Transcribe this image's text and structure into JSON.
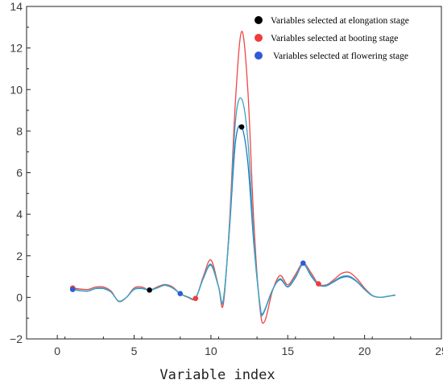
{
  "chart_data": {
    "type": "line",
    "title": "",
    "xlabel": "Variable index",
    "ylabel": "",
    "xlim": [
      -2,
      25
    ],
    "ylim": [
      -2,
      14
    ],
    "x_ticks": [
      0,
      5,
      10,
      15,
      20,
      25
    ],
    "y_ticks": [
      -2,
      0,
      2,
      4,
      6,
      8,
      10,
      12,
      14
    ],
    "grid": false,
    "legend_position": "top-right",
    "series": [
      {
        "color": "#f04545",
        "points": [
          [
            1,
            0.45
          ],
          [
            1.5,
            0.4
          ],
          [
            2,
            0.38
          ],
          [
            2.5,
            0.5
          ],
          [
            3,
            0.5
          ],
          [
            3.5,
            0.3
          ],
          [
            4,
            -0.2
          ],
          [
            4.5,
            0.0
          ],
          [
            5,
            0.45
          ],
          [
            5.5,
            0.5
          ],
          [
            6,
            0.35
          ],
          [
            6.5,
            0.5
          ],
          [
            7,
            0.62
          ],
          [
            7.5,
            0.5
          ],
          [
            8,
            0.18
          ],
          [
            8.5,
            0.0
          ],
          [
            9,
            -0.05
          ],
          [
            9.5,
            1.0
          ],
          [
            10,
            1.8
          ],
          [
            10.5,
            0.5
          ],
          [
            10.8,
            -0.35
          ],
          [
            11.2,
            3.5
          ],
          [
            11.6,
            9.5
          ],
          [
            12,
            12.8
          ],
          [
            12.4,
            10.0
          ],
          [
            12.8,
            3.5
          ],
          [
            13.2,
            -0.6
          ],
          [
            13.5,
            -1.15
          ],
          [
            14,
            0.3
          ],
          [
            14.5,
            1.05
          ],
          [
            15,
            0.6
          ],
          [
            15.5,
            1.1
          ],
          [
            16,
            1.65
          ],
          [
            16.5,
            1.2
          ],
          [
            17,
            0.65
          ],
          [
            17.5,
            0.6
          ],
          [
            18,
            0.85
          ],
          [
            18.5,
            1.15
          ],
          [
            19,
            1.2
          ],
          [
            19.5,
            0.9
          ],
          [
            20,
            0.45
          ],
          [
            20.5,
            0.1
          ],
          [
            21,
            0.0
          ],
          [
            21.5,
            0.05
          ],
          [
            22,
            0.12
          ]
        ]
      },
      {
        "color": "#1f76c0",
        "points": [
          [
            1,
            0.38
          ],
          [
            1.5,
            0.32
          ],
          [
            2,
            0.3
          ],
          [
            2.5,
            0.42
          ],
          [
            3,
            0.42
          ],
          [
            3.5,
            0.25
          ],
          [
            4,
            -0.18
          ],
          [
            4.5,
            0.0
          ],
          [
            5,
            0.38
          ],
          [
            5.5,
            0.42
          ],
          [
            6,
            0.35
          ],
          [
            6.5,
            0.45
          ],
          [
            7,
            0.58
          ],
          [
            7.5,
            0.45
          ],
          [
            8,
            0.18
          ],
          [
            8.5,
            0.02
          ],
          [
            9,
            -0.02
          ],
          [
            9.5,
            0.9
          ],
          [
            10,
            1.55
          ],
          [
            10.5,
            0.5
          ],
          [
            10.8,
            -0.15
          ],
          [
            11.2,
            3.2
          ],
          [
            11.6,
            7.5
          ],
          [
            12,
            8.2
          ],
          [
            12.4,
            6.5
          ],
          [
            12.8,
            2.5
          ],
          [
            13.2,
            -0.4
          ],
          [
            13.4,
            -0.75
          ],
          [
            14,
            0.35
          ],
          [
            14.5,
            0.85
          ],
          [
            15,
            0.5
          ],
          [
            15.5,
            0.95
          ],
          [
            16,
            1.6
          ],
          [
            16.5,
            1.05
          ],
          [
            17,
            0.6
          ],
          [
            17.5,
            0.55
          ],
          [
            18,
            0.75
          ],
          [
            18.5,
            0.95
          ],
          [
            19,
            0.98
          ],
          [
            19.5,
            0.75
          ],
          [
            20,
            0.38
          ],
          [
            20.5,
            0.08
          ],
          [
            21,
            0.0
          ],
          [
            21.5,
            0.05
          ],
          [
            22,
            0.1
          ]
        ]
      },
      {
        "color": "#3aa6c2",
        "points": [
          [
            1,
            0.4
          ],
          [
            1.5,
            0.33
          ],
          [
            2,
            0.31
          ],
          [
            2.5,
            0.44
          ],
          [
            3,
            0.44
          ],
          [
            3.5,
            0.26
          ],
          [
            4,
            -0.19
          ],
          [
            4.5,
            0.0
          ],
          [
            5,
            0.4
          ],
          [
            5.5,
            0.44
          ],
          [
            6,
            0.36
          ],
          [
            6.5,
            0.46
          ],
          [
            7,
            0.6
          ],
          [
            7.5,
            0.46
          ],
          [
            8,
            0.18
          ],
          [
            8.5,
            0.02
          ],
          [
            9,
            -0.03
          ],
          [
            9.5,
            0.92
          ],
          [
            10,
            1.6
          ],
          [
            10.5,
            0.5
          ],
          [
            10.8,
            -0.2
          ],
          [
            11.2,
            3.3
          ],
          [
            11.6,
            8.5
          ],
          [
            12,
            9.55
          ],
          [
            12.4,
            7.6
          ],
          [
            12.8,
            2.8
          ],
          [
            13.2,
            -0.45
          ],
          [
            13.4,
            -0.8
          ],
          [
            14,
            0.33
          ],
          [
            14.5,
            0.9
          ],
          [
            15,
            0.52
          ],
          [
            15.5,
            1.0
          ],
          [
            16,
            1.62
          ],
          [
            16.5,
            1.1
          ],
          [
            17,
            0.62
          ],
          [
            17.5,
            0.57
          ],
          [
            18,
            0.78
          ],
          [
            18.5,
            1.0
          ],
          [
            19,
            1.02
          ],
          [
            19.5,
            0.78
          ],
          [
            20,
            0.4
          ],
          [
            20.5,
            0.09
          ],
          [
            21,
            0.0
          ],
          [
            21.5,
            0.05
          ],
          [
            22,
            0.11
          ]
        ]
      }
    ],
    "selected_points": [
      {
        "group": "Variables selected at elongation stage",
        "color": "#000000",
        "points": [
          [
            6,
            0.35
          ],
          [
            12,
            8.2
          ]
        ]
      },
      {
        "group": "Variables selected at booting stage",
        "color": "#f03c3c",
        "points": [
          [
            1,
            0.45
          ],
          [
            9,
            -0.05
          ],
          [
            17,
            0.65
          ]
        ]
      },
      {
        "group": "Variables selected at flowering stage",
        "color": "#2f5bd8",
        "points": [
          [
            1,
            0.38
          ],
          [
            8,
            0.18
          ],
          [
            16,
            1.65
          ]
        ]
      }
    ],
    "legend": [
      {
        "label": "Variables selected at elongation stage",
        "color": "#000000"
      },
      {
        "label": "Variables selected at booting stage",
        "color": "#f03c3c"
      },
      {
        "label": "Variables selected at flowering stage",
        "color": "#2f5bd8"
      }
    ]
  }
}
